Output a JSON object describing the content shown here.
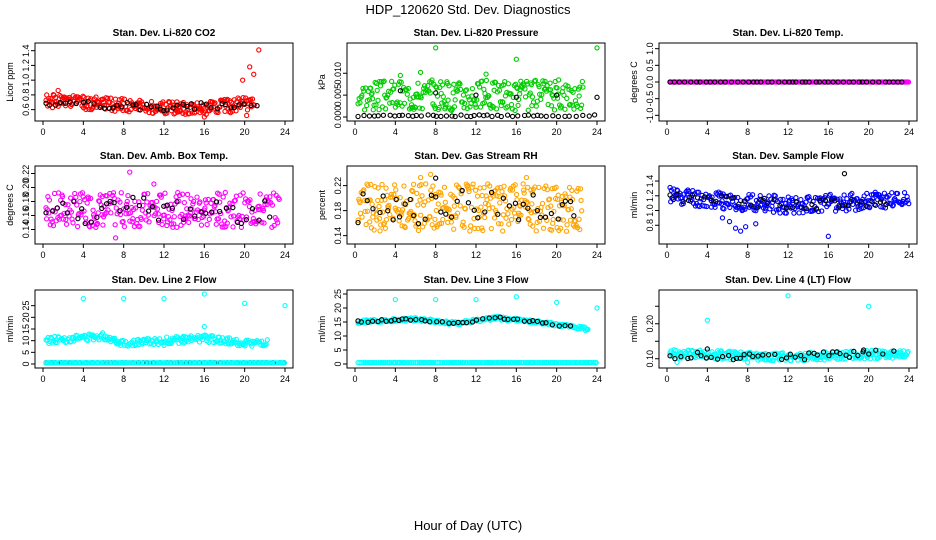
{
  "title": "HDP_120620  Std. Dev. Diagnostics",
  "xlabel": "Hour of Day (UTC)",
  "chart_data": [
    {
      "type": "scatter",
      "title": "Stan. Dev. Li-820 CO2",
      "ylabel": "Licor ppm",
      "xlim": [
        0,
        24
      ],
      "ylim": [
        0.5,
        1.45
      ],
      "xticks": [
        0,
        4,
        8,
        12,
        16,
        20,
        24
      ],
      "yticks": [
        0.6,
        0.8,
        1.0,
        1.2,
        1.4
      ],
      "ytick_labels": [
        "0.6",
        "0.8",
        "1.0",
        "1.2",
        "1.4"
      ],
      "series": [
        {
          "color": "#ff0000",
          "pattern": {
            "base": [
              [
                0,
                0.72
              ],
              [
                6,
                0.68
              ],
              [
                12,
                0.62
              ],
              [
                16,
                0.62
              ],
              [
                20,
                0.68
              ],
              [
                24,
                0.7
              ]
            ],
            "spread": 0.09,
            "n": 260,
            "seed": 1,
            "dx": 0.08
          },
          "outliers": [
            [
              21.4,
              1.41
            ],
            [
              20.5,
              1.18
            ],
            [
              20.9,
              1.08
            ],
            [
              19.8,
              1.0
            ],
            [
              1.5,
              0.86
            ],
            [
              14.5,
              0.55
            ],
            [
              16,
              0.5
            ],
            [
              18.6,
              0.56
            ],
            [
              20.2,
              0.52
            ]
          ]
        },
        {
          "color": "#000000",
          "pattern": {
            "base": [
              [
                0,
                0.7
              ],
              [
                12,
                0.63
              ],
              [
                24,
                0.7
              ]
            ],
            "spread": 0.05,
            "n": 44,
            "seed": 2,
            "dx": 0.5
          },
          "outliers": []
        }
      ]
    },
    {
      "type": "scatter",
      "title": "Stan. Dev. Li-820 Pressure",
      "ylabel": "kPa",
      "xlim": [
        0,
        24
      ],
      "ylim": [
        0,
        0.016
      ],
      "xticks": [
        0,
        4,
        8,
        12,
        16,
        20,
        24
      ],
      "yticks": [
        0,
        0.005,
        0.01
      ],
      "ytick_labels": [
        "0.000",
        "0.005",
        "0.010"
      ],
      "series": [
        {
          "color": "#00cc00",
          "pattern": {
            "base": [
              [
                0,
                0.005
              ],
              [
                24,
                0.005
              ]
            ],
            "spread": 0.0035,
            "n": 280,
            "seed": 3,
            "dx": 0.08
          },
          "outliers": [
            [
              8,
              0.0158
            ],
            [
              16,
              0.0132
            ],
            [
              24,
              0.0158
            ],
            [
              6.5,
              0.0102
            ],
            [
              13,
              0.0098
            ],
            [
              4.5,
              0.0095
            ]
          ]
        },
        {
          "color": "#000000",
          "pattern": {
            "base": [
              [
                0,
                0.0003
              ],
              [
                24,
                0.0003
              ]
            ],
            "spread": 0.0002,
            "n": 48,
            "seed": 4,
            "dx": 0.5
          },
          "outliers": [
            [
              4.5,
              0.006
            ],
            [
              8,
              0.0055
            ],
            [
              12,
              0.005
            ],
            [
              16,
              0.0045
            ],
            [
              20,
              0.005
            ],
            [
              24,
              0.0045
            ]
          ]
        }
      ]
    },
    {
      "type": "scatter",
      "title": "Stan. Dev. Li-820 Temp.",
      "ylabel": "degrees C",
      "xlim": [
        0,
        24
      ],
      "ylim": [
        -1.05,
        1.05
      ],
      "xticks": [
        0,
        4,
        8,
        12,
        16,
        20,
        24
      ],
      "yticks": [
        -1,
        -0.5,
        0,
        0.5,
        1
      ],
      "ytick_labels": [
        "-1.0",
        "-0.5",
        "0.0",
        "0.5",
        "1.0"
      ],
      "series": [
        {
          "color": "#ff00ff",
          "pattern": {
            "base": [
              [
                0,
                0
              ],
              [
                24,
                0
              ]
            ],
            "spread": 0,
            "n": 240,
            "seed": 5,
            "dx": 0.1
          },
          "outliers": []
        },
        {
          "color": "#000000",
          "pattern": {
            "base": [
              [
                0,
                0
              ],
              [
                24,
                0
              ]
            ],
            "spread": 0,
            "n": 48,
            "seed": 6,
            "dx": 0.5
          },
          "outliers": []
        }
      ]
    },
    {
      "type": "scatter",
      "title": "Stan. Dev. Amb. Box Temp.",
      "ylabel": "degrees C",
      "xlim": [
        0,
        24
      ],
      "ylim": [
        0.125,
        0.225
      ],
      "xticks": [
        0,
        4,
        8,
        12,
        16,
        20,
        24
      ],
      "yticks": [
        0.14,
        0.16,
        0.18,
        0.2,
        0.22
      ],
      "ytick_labels": [
        "0.14",
        "0.16",
        "0.18",
        "0.20",
        "0.22"
      ],
      "series": [
        {
          "color": "#ff00ff",
          "pattern": {
            "base": [
              [
                0,
                0.168
              ],
              [
                24,
                0.168
              ]
            ],
            "spread": 0.025,
            "n": 300,
            "seed": 7,
            "dx": 0.08
          },
          "outliers": [
            [
              8.6,
              0.222
            ],
            [
              7.2,
              0.128
            ],
            [
              11,
              0.205
            ]
          ]
        },
        {
          "color": "#000000",
          "pattern": {
            "base": [
              [
                0,
                0.168
              ],
              [
                24,
                0.168
              ]
            ],
            "spread": 0.02,
            "n": 44,
            "seed": 8,
            "dx": 0.5
          },
          "outliers": []
        }
      ]
    },
    {
      "type": "scatter",
      "title": "Stan. Dev. Gas Stream RH",
      "ylabel": "percent",
      "xlim": [
        0,
        24
      ],
      "ylim": [
        0.133,
        0.245
      ],
      "xticks": [
        0,
        4,
        8,
        12,
        16,
        20,
        24
      ],
      "yticks": [
        0.14,
        0.18,
        0.22
      ],
      "ytick_labels": [
        "0.14",
        "0.18",
        "0.22"
      ],
      "series": [
        {
          "color": "#ffa500",
          "pattern": {
            "base": [
              [
                0,
                0.185
              ],
              [
                24,
                0.185
              ]
            ],
            "spread": 0.038,
            "n": 320,
            "seed": 9,
            "dx": 0.07
          },
          "outliers": [
            [
              7.5,
              0.238
            ],
            [
              6.5,
              0.233
            ],
            [
              17,
              0.233
            ]
          ]
        },
        {
          "color": "#000000",
          "pattern": {
            "base": [
              [
                0,
                0.185
              ],
              [
                24,
                0.185
              ]
            ],
            "spread": 0.028,
            "n": 44,
            "seed": 10,
            "dx": 0.5
          },
          "outliers": [
            [
              8,
              0.232
            ]
          ]
        }
      ]
    },
    {
      "type": "scatter",
      "title": "Stan. Dev. Sample Flow",
      "ylabel": "ml/min",
      "xlim": [
        0,
        24
      ],
      "ylim": [
        0.6,
        1.55
      ],
      "xticks": [
        0,
        4,
        8,
        12,
        16,
        20,
        24
      ],
      "yticks": [
        0.8,
        1.0,
        1.2,
        1.4
      ],
      "ytick_labels": [
        "0.8",
        "1.0",
        "1.2",
        "1.4"
      ],
      "series": [
        {
          "color": "#0000ff",
          "pattern": {
            "base": [
              [
                0,
                1.22
              ],
              [
                6,
                1.12
              ],
              [
                12,
                1.08
              ],
              [
                16,
                1.1
              ],
              [
                24,
                1.16
              ]
            ],
            "spread": 0.12,
            "n": 300,
            "seed": 11,
            "dx": 0.08
          },
          "outliers": [
            [
              6.8,
              0.76
            ],
            [
              7.3,
              0.72
            ],
            [
              7.8,
              0.78
            ],
            [
              16,
              0.65
            ],
            [
              6.2,
              0.85
            ],
            [
              5.5,
              0.9
            ],
            [
              8.8,
              0.82
            ]
          ]
        },
        {
          "color": "#000000",
          "pattern": {
            "base": [
              [
                0,
                1.18
              ],
              [
                12,
                1.08
              ],
              [
                24,
                1.12
              ]
            ],
            "spread": 0.07,
            "n": 44,
            "seed": 12,
            "dx": 0.5
          },
          "outliers": [
            [
              17.6,
              1.5
            ]
          ]
        }
      ]
    },
    {
      "type": "scatter",
      "title": "Stan. Dev. Line 2 Flow",
      "ylabel": "ml/min",
      "xlim": [
        0,
        24
      ],
      "ylim": [
        0,
        30
      ],
      "xticks": [
        0,
        4,
        8,
        12,
        16,
        20,
        24
      ],
      "yticks": [
        0,
        5,
        10,
        15,
        20,
        25
      ],
      "ytick_labels": [
        "0",
        "5",
        "10",
        "15",
        "20",
        "25"
      ],
      "series": [
        {
          "color": "#00ffff",
          "pattern": {
            "base": [
              [
                0,
                10
              ],
              [
                6,
                12
              ],
              [
                8,
                9
              ],
              [
                12,
                10
              ],
              [
                16,
                11
              ],
              [
                20,
                9
              ],
              [
                24,
                9
              ]
            ],
            "spread": 1.5,
            "n": 220,
            "seed": 13,
            "dx": 0.1
          },
          "outliers": [
            [
              4,
              28
            ],
            [
              8,
              28
            ],
            [
              12,
              28
            ],
            [
              16,
              30
            ],
            [
              20,
              26
            ],
            [
              24,
              25
            ],
            [
              16,
              16
            ],
            [
              12,
              8
            ],
            [
              14,
              9
            ]
          ]
        },
        {
          "color": "#000000",
          "pattern": {
            "base": [
              [
                0,
                0.5
              ],
              [
                24,
                0.5
              ]
            ],
            "spread": 0,
            "n": 48,
            "seed": 14,
            "dx": 0.5
          },
          "outliers": []
        },
        {
          "color": "#00ffff",
          "pattern": {
            "base": [
              [
                0,
                0.5
              ],
              [
                24,
                0.5
              ]
            ],
            "spread": 0,
            "n": 160,
            "seed": 15,
            "dx": 0.15
          },
          "outliers": []
        }
      ]
    },
    {
      "type": "scatter",
      "title": "Stan. Dev. Line 3 Flow",
      "ylabel": "ml/min",
      "xlim": [
        0,
        24
      ],
      "ylim": [
        0,
        25
      ],
      "xticks": [
        0,
        4,
        8,
        12,
        16,
        20,
        24
      ],
      "yticks": [
        0,
        5,
        10,
        15,
        20,
        25
      ],
      "ytick_labels": [
        "0",
        "5",
        "10",
        "15",
        "20",
        "25"
      ],
      "series": [
        {
          "color": "#00ffff",
          "pattern": {
            "base": [
              [
                0,
                15
              ],
              [
                6,
                16
              ],
              [
                10,
                14.5
              ],
              [
                14,
                16.5
              ],
              [
                18,
                15
              ],
              [
                24,
                12
              ]
            ],
            "spread": 0.6,
            "n": 230,
            "seed": 16,
            "dx": 0.1
          },
          "outliers": [
            [
              4,
              23
            ],
            [
              8,
              23
            ],
            [
              12,
              23
            ],
            [
              16,
              24
            ],
            [
              20,
              22
            ],
            [
              24,
              20
            ]
          ]
        },
        {
          "color": "#000000",
          "pattern": {
            "base": [
              [
                0,
                15
              ],
              [
                6,
                16
              ],
              [
                10,
                14.5
              ],
              [
                14,
                16.5
              ],
              [
                18,
                15
              ],
              [
                24,
                12
              ]
            ],
            "spread": 0.4,
            "n": 44,
            "seed": 17,
            "dx": 0.5
          },
          "outliers": []
        },
        {
          "color": "#00ffff",
          "pattern": {
            "base": [
              [
                0,
                0.5
              ],
              [
                24,
                0.5
              ]
            ],
            "spread": 0,
            "n": 160,
            "seed": 18,
            "dx": 0.15
          },
          "outliers": []
        }
      ]
    },
    {
      "type": "scatter",
      "title": "Stan. Dev. Line 4 (LT) Flow",
      "ylabel": "ml/min",
      "xlim": [
        0,
        24
      ],
      "ylim": [
        0.085,
        0.285
      ],
      "xticks": [
        0,
        4,
        8,
        12,
        16,
        20,
        24
      ],
      "yticks": [
        0.1,
        0.15,
        0.2,
        0.25
      ],
      "ytick_labels": [
        "0.10",
        "",
        "0.20",
        ""
      ],
      "series": [
        {
          "color": "#00ffff",
          "pattern": {
            "base": [
              [
                0,
                0.115
              ],
              [
                12,
                0.105
              ],
              [
                24,
                0.115
              ]
            ],
            "spread": 0.012,
            "n": 300,
            "seed": 19,
            "dx": 0.08
          },
          "outliers": [
            [
              4,
              0.21
            ],
            [
              12,
              0.28
            ],
            [
              20,
              0.25
            ],
            [
              1,
              0.09
            ],
            [
              8,
              0.09
            ]
          ]
        },
        {
          "color": "#000000",
          "pattern": {
            "base": [
              [
                0,
                0.11
              ],
              [
                12,
                0.105
              ],
              [
                24,
                0.12
              ]
            ],
            "spread": 0.01,
            "n": 44,
            "seed": 20,
            "dx": 0.5
          },
          "outliers": [
            [
              4,
              0.128
            ],
            [
              19.5,
              0.125
            ],
            [
              22.5,
              0.122
            ]
          ]
        }
      ]
    }
  ]
}
